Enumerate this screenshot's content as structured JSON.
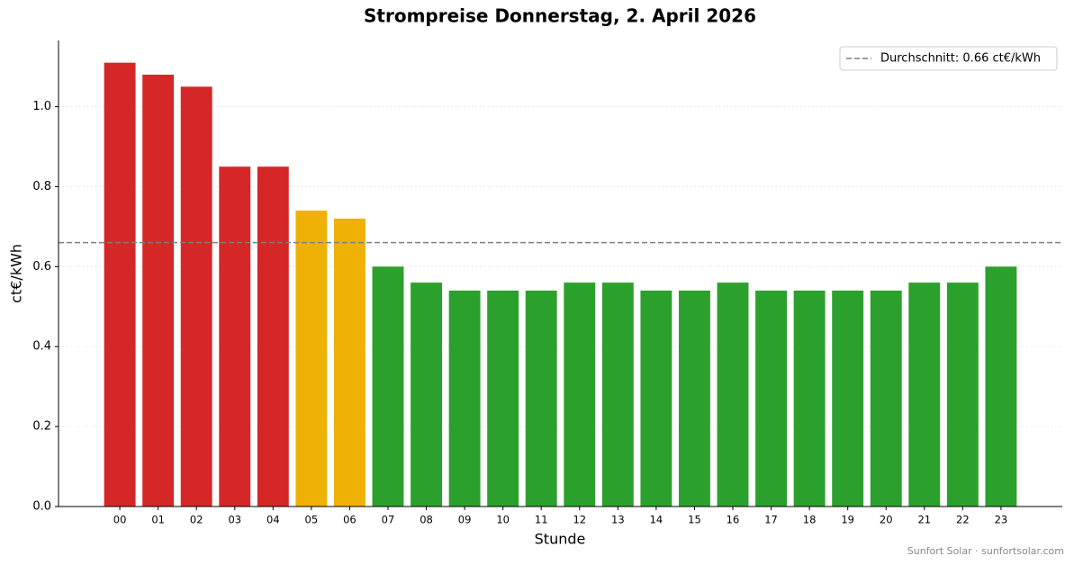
{
  "chart_data": {
    "type": "bar",
    "title": "Strompreise Donnerstag, 2. April 2026",
    "x_label": "Stunde",
    "y_label": "ct€/kWh",
    "categories": [
      "00",
      "01",
      "02",
      "03",
      "04",
      "05",
      "06",
      "07",
      "08",
      "09",
      "10",
      "11",
      "12",
      "13",
      "14",
      "15",
      "16",
      "17",
      "18",
      "19",
      "20",
      "21",
      "22",
      "23"
    ],
    "values": [
      1.11,
      1.08,
      1.05,
      0.85,
      0.85,
      0.74,
      0.72,
      0.6,
      0.56,
      0.54,
      0.54,
      0.54,
      0.56,
      0.56,
      0.54,
      0.54,
      0.56,
      0.54,
      0.54,
      0.54,
      0.54,
      0.56,
      0.56,
      0.6
    ],
    "colors": [
      "#d62728",
      "#d62728",
      "#d62728",
      "#d62728",
      "#d62728",
      "#efb106",
      "#efb106",
      "#2ca02c",
      "#2ca02c",
      "#2ca02c",
      "#2ca02c",
      "#2ca02c",
      "#2ca02c",
      "#2ca02c",
      "#2ca02c",
      "#2ca02c",
      "#2ca02c",
      "#2ca02c",
      "#2ca02c",
      "#2ca02c",
      "#2ca02c",
      "#2ca02c",
      "#2ca02c",
      "#2ca02c"
    ],
    "average": 0.66,
    "average_label": "Durchschnitt: 0.66 ct€/kWh",
    "average_color": "#7f7f7f",
    "ylim": [
      0,
      1.1655
    ],
    "yticks": [
      {
        "value": 0,
        "label": "0.0"
      },
      {
        "value": 0.2,
        "label": "0.2"
      },
      {
        "value": 0.4,
        "label": "0.4"
      },
      {
        "value": 0.6,
        "label": "0.6"
      },
      {
        "value": 0.8,
        "label": "0.8"
      },
      {
        "value": 1.0,
        "label": "1.0"
      }
    ],
    "grid": true,
    "legend_position": "upper right",
    "footer": "Sunfort Solar · sunfortsolar.com"
  }
}
